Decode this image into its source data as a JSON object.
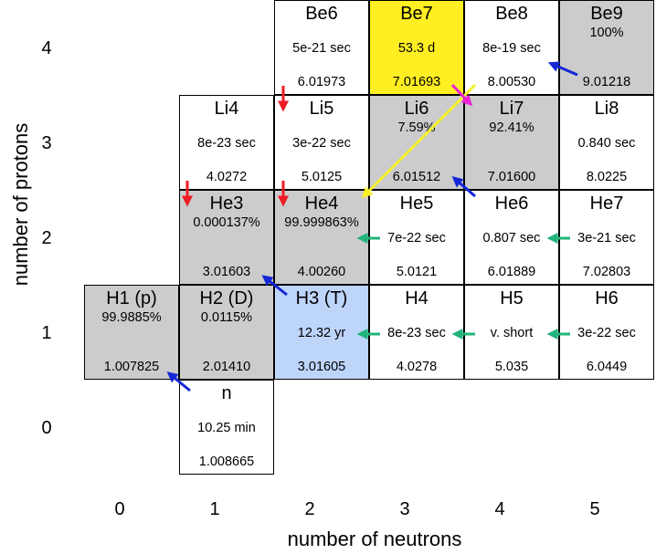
{
  "axes": {
    "x_title": "number of neutrons",
    "y_title": "number of protons",
    "x_ticks": [
      "0",
      "1",
      "2",
      "3",
      "4",
      "5"
    ],
    "y_ticks": [
      "4",
      "3",
      "2",
      "1",
      "0"
    ]
  },
  "colors": {
    "stable": "#cccccc",
    "unstable": "#ffffff",
    "be7": "#ffee22",
    "h3": "#bed5fa",
    "arrow_red": "#ee1c24",
    "arrow_blue": "#1428d6",
    "arrow_green": "#22b47a",
    "arrow_yellow": "#f8f028",
    "arrow_magenta": "#ee22d8"
  },
  "nuclides": [
    {
      "id": "be6",
      "name": "Be6",
      "info": "5e-21 sec",
      "mass": "6.01973",
      "neutrons": 2,
      "protons": 4,
      "color": "#ffffff",
      "info_pos": "mid"
    },
    {
      "id": "be7",
      "name": "Be7",
      "info": "53.3 d",
      "mass": "7.01693",
      "neutrons": 3,
      "protons": 4,
      "color": "#ffee22",
      "info_pos": "mid"
    },
    {
      "id": "be8",
      "name": "Be8",
      "info": "8e-19 sec",
      "mass": "8.00530",
      "neutrons": 4,
      "protons": 4,
      "color": "#ffffff",
      "info_pos": "mid"
    },
    {
      "id": "be9",
      "name": "Be9",
      "info": "100%",
      "mass": "9.01218",
      "neutrons": 5,
      "protons": 4,
      "color": "#cccccc",
      "info_pos": "up"
    },
    {
      "id": "li4",
      "name": "Li4",
      "info": "8e-23 sec",
      "mass": "4.0272",
      "neutrons": 1,
      "protons": 3,
      "color": "#ffffff",
      "info_pos": "mid"
    },
    {
      "id": "li5",
      "name": "Li5",
      "info": "3e-22 sec",
      "mass": "5.0125",
      "neutrons": 2,
      "protons": 3,
      "color": "#ffffff",
      "info_pos": "mid"
    },
    {
      "id": "li6",
      "name": "Li6",
      "info": "7.59%",
      "mass": "6.01512",
      "neutrons": 3,
      "protons": 3,
      "color": "#cccccc",
      "info_pos": "up"
    },
    {
      "id": "li7",
      "name": "Li7",
      "info": "92.41%",
      "mass": "7.01600",
      "neutrons": 4,
      "protons": 3,
      "color": "#cccccc",
      "info_pos": "up"
    },
    {
      "id": "li8",
      "name": "Li8",
      "info": "0.840 sec",
      "mass": "8.0225",
      "neutrons": 5,
      "protons": 3,
      "color": "#ffffff",
      "info_pos": "mid"
    },
    {
      "id": "he3",
      "name": "He3",
      "info": "0.000137%",
      "mass": "3.01603",
      "neutrons": 1,
      "protons": 2,
      "color": "#cccccc",
      "info_pos": "up"
    },
    {
      "id": "he4",
      "name": "He4",
      "info": "99.999863%",
      "mass": "4.00260",
      "neutrons": 2,
      "protons": 2,
      "color": "#cccccc",
      "info_pos": "up"
    },
    {
      "id": "he5",
      "name": "He5",
      "info": "7e-22 sec",
      "mass": "5.0121",
      "neutrons": 3,
      "protons": 2,
      "color": "#ffffff",
      "info_pos": "mid"
    },
    {
      "id": "he6",
      "name": "He6",
      "info": "0.807 sec",
      "mass": "6.01889",
      "neutrons": 4,
      "protons": 2,
      "color": "#ffffff",
      "info_pos": "mid"
    },
    {
      "id": "he7",
      "name": "He7",
      "info": "3e-21 sec",
      "mass": "7.02803",
      "neutrons": 5,
      "protons": 2,
      "color": "#ffffff",
      "info_pos": "mid"
    },
    {
      "id": "h1",
      "name": "H1 (p)",
      "info": "99.9885%",
      "mass": "1.007825",
      "neutrons": 0,
      "protons": 1,
      "color": "#cccccc",
      "info_pos": "up"
    },
    {
      "id": "h2",
      "name": "H2 (D)",
      "info": "0.0115%",
      "mass": "2.01410",
      "neutrons": 1,
      "protons": 1,
      "color": "#cccccc",
      "info_pos": "up"
    },
    {
      "id": "h3",
      "name": "H3 (T)",
      "info": "12.32 yr",
      "mass": "3.01605",
      "neutrons": 2,
      "protons": 1,
      "color": "#bed5fa",
      "info_pos": "mid"
    },
    {
      "id": "h4",
      "name": "H4",
      "info": "8e-23 sec",
      "mass": "4.0278",
      "neutrons": 3,
      "protons": 1,
      "color": "#ffffff",
      "info_pos": "mid"
    },
    {
      "id": "h5",
      "name": "H5",
      "info": "v. short",
      "mass": "5.035",
      "neutrons": 4,
      "protons": 1,
      "color": "#ffffff",
      "info_pos": "mid"
    },
    {
      "id": "h6",
      "name": "H6",
      "info": "3e-22 sec",
      "mass": "6.0449",
      "neutrons": 5,
      "protons": 1,
      "color": "#ffffff",
      "info_pos": "mid"
    },
    {
      "id": "n",
      "name": "n",
      "info": "10.25 min",
      "mass": "1.008665",
      "neutrons": 1,
      "protons": 0,
      "color": "#ffffff",
      "info_pos": "mid"
    }
  ]
}
